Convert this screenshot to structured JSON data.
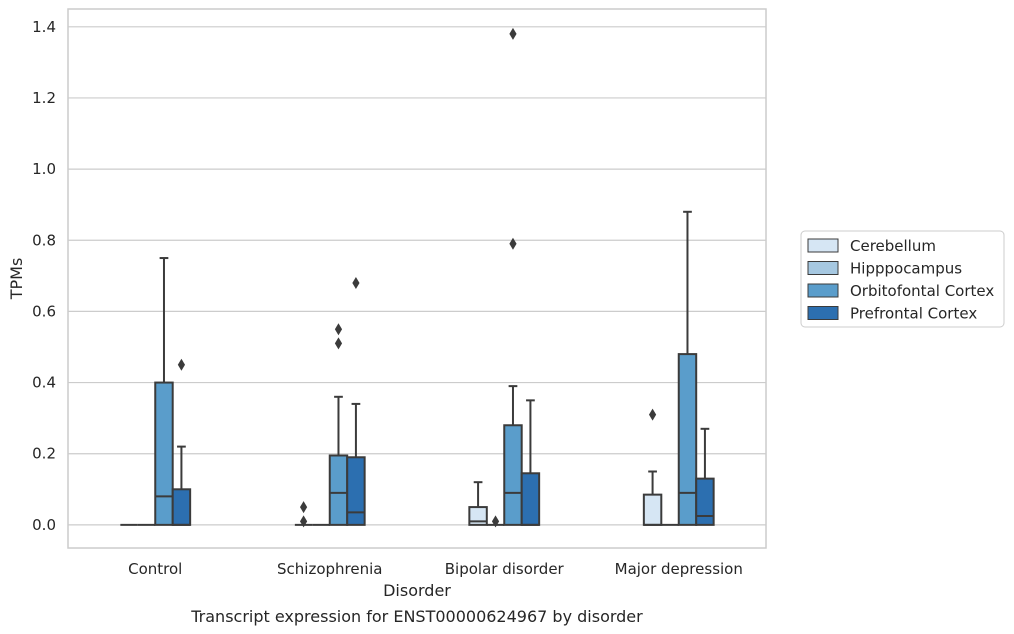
{
  "chart_data": {
    "type": "box",
    "title": "",
    "caption": "Transcript expression for ENST00000624967 by disorder",
    "xlabel": "Disorder",
    "ylabel": "TPMs",
    "ylim": [
      -0.065,
      1.45
    ],
    "yticks": [
      "0.0",
      "0.2",
      "0.4",
      "0.6",
      "0.8",
      "1.0",
      "1.2",
      "1.4"
    ],
    "ytick_values": [
      0,
      0.2,
      0.4,
      0.6,
      0.8,
      1.0,
      1.2,
      1.4
    ],
    "grid": "horizontal",
    "legend_placement": "right",
    "categories": [
      "Control",
      "Schizophrenia",
      "Bipolar disorder",
      "Major depression"
    ],
    "series": [
      {
        "name": "Cerebellum",
        "color": "#d6e6f4",
        "boxes": [
          {
            "q1": 0,
            "median": 0,
            "q3": 0,
            "whisker_low": 0,
            "whisker_high": 0,
            "outliers": []
          },
          {
            "q1": 0,
            "median": 0,
            "q3": 0,
            "whisker_low": 0,
            "whisker_high": 0,
            "outliers": [
              0.01,
              0.05
            ]
          },
          {
            "q1": 0,
            "median": 0.01,
            "q3": 0.05,
            "whisker_low": 0,
            "whisker_high": 0.12,
            "outliers": []
          },
          {
            "q1": 0,
            "median": 0,
            "q3": 0.085,
            "whisker_low": 0,
            "whisker_high": 0.15,
            "outliers": [
              0.31
            ]
          }
        ]
      },
      {
        "name": "Hipppocampus",
        "color": "#a6c8e1",
        "boxes": [
          {
            "q1": 0,
            "median": 0,
            "q3": 0,
            "whisker_low": 0,
            "whisker_high": 0,
            "outliers": []
          },
          {
            "q1": 0,
            "median": 0,
            "q3": 0,
            "whisker_low": 0,
            "whisker_high": 0,
            "outliers": []
          },
          {
            "q1": 0,
            "median": 0,
            "q3": 0,
            "whisker_low": 0,
            "whisker_high": 0,
            "outliers": [
              0.01
            ]
          },
          {
            "q1": 0,
            "median": 0,
            "q3": 0,
            "whisker_low": 0,
            "whisker_high": 0,
            "outliers": []
          }
        ]
      },
      {
        "name": "Orbitofontal Cortex",
        "color": "#5a9dcb",
        "boxes": [
          {
            "q1": 0,
            "median": 0.08,
            "q3": 0.4,
            "whisker_low": 0,
            "whisker_high": 0.75,
            "outliers": []
          },
          {
            "q1": 0,
            "median": 0.09,
            "q3": 0.195,
            "whisker_low": 0,
            "whisker_high": 0.36,
            "outliers": [
              0.51,
              0.55
            ]
          },
          {
            "q1": 0,
            "median": 0.09,
            "q3": 0.28,
            "whisker_low": 0,
            "whisker_high": 0.39,
            "outliers": [
              0.79,
              1.38
            ]
          },
          {
            "q1": 0,
            "median": 0.09,
            "q3": 0.48,
            "whisker_low": 0,
            "whisker_high": 0.88,
            "outliers": []
          }
        ]
      },
      {
        "name": "Prefrontal Cortex",
        "color": "#2c6fb0",
        "boxes": [
          {
            "q1": 0,
            "median": 0,
            "q3": 0.1,
            "whisker_low": 0,
            "whisker_high": 0.22,
            "outliers": [
              0.45
            ]
          },
          {
            "q1": 0,
            "median": 0.035,
            "q3": 0.19,
            "whisker_low": 0,
            "whisker_high": 0.34,
            "outliers": [
              0.68
            ]
          },
          {
            "q1": 0,
            "median": 0,
            "q3": 0.145,
            "whisker_low": 0,
            "whisker_high": 0.35,
            "outliers": []
          },
          {
            "q1": 0,
            "median": 0.025,
            "q3": 0.13,
            "whisker_low": 0,
            "whisker_high": 0.27,
            "outliers": []
          }
        ]
      }
    ]
  }
}
